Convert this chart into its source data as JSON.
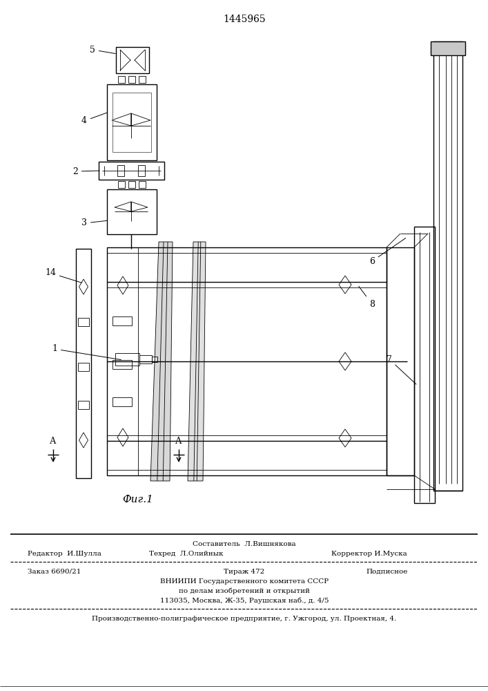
{
  "patent_number": "1445965",
  "figure_label": "Фиг.1",
  "background_color": "#ffffff",
  "line_color": "#000000",
  "footer": {
    "sestavitel": "Составитель  Л.Вишнякова",
    "redaktor": "Редактор  И.Шулла",
    "tehred": "Техред  Л.Олийнык",
    "korrektor": "Корректор И.Муска",
    "zakaz": "Заказ 6690/21",
    "tirazh": "Тираж 472",
    "podpisnoe": "Подписное",
    "vnipi1": "ВНИИПИ Государственного комитета СССР",
    "vnipi2": "по делам изобретений и открытий",
    "vnipi3": "113035, Москва, Ж-35, Раушская наб., д. 4/5",
    "bottom": "Производственно-полиграфическое предприятие, г. Ужгород, ул. Проектная, 4."
  }
}
